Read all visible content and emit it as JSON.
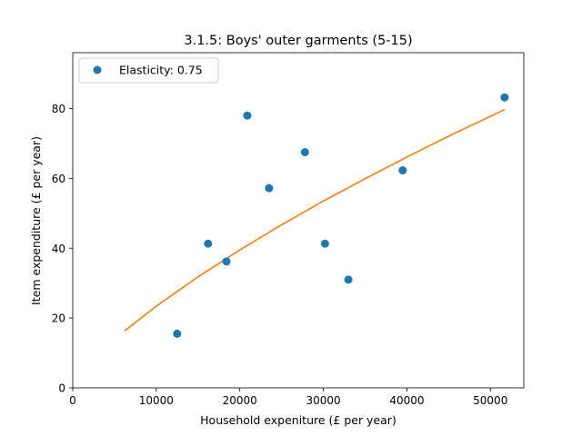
{
  "chart_data": {
    "type": "scatter",
    "title": "3.1.5: Boys' outer garments (5-15)",
    "xlabel": "Household expeniture (£ per year)",
    "ylabel": "Item expenditure (£ per year)",
    "xlim": [
      0,
      54000
    ],
    "ylim": [
      0,
      96
    ],
    "xticks": [
      0,
      10000,
      20000,
      30000,
      40000,
      50000
    ],
    "yticks": [
      0,
      20,
      40,
      60,
      80
    ],
    "grid": false,
    "legend_position": "top-left",
    "series": [
      {
        "name": "Elasticity: 0.75",
        "kind": "scatter",
        "color": "#1f77b4",
        "x": [
          12500,
          16200,
          18400,
          20900,
          23500,
          27800,
          30200,
          33000,
          39500,
          51700
        ],
        "y": [
          15.5,
          41.3,
          36.2,
          78.0,
          57.2,
          67.5,
          41.3,
          31.0,
          62.3,
          83.2
        ]
      },
      {
        "kind": "line",
        "color": "#ff7f0e",
        "x": [
          6200,
          10000,
          15000,
          20000,
          25000,
          30000,
          35000,
          40000,
          45000,
          51700
        ],
        "y": [
          16.3,
          23.4,
          31.8,
          39.5,
          46.7,
          53.5,
          59.9,
          66.1,
          72.1,
          79.7
        ]
      }
    ]
  }
}
